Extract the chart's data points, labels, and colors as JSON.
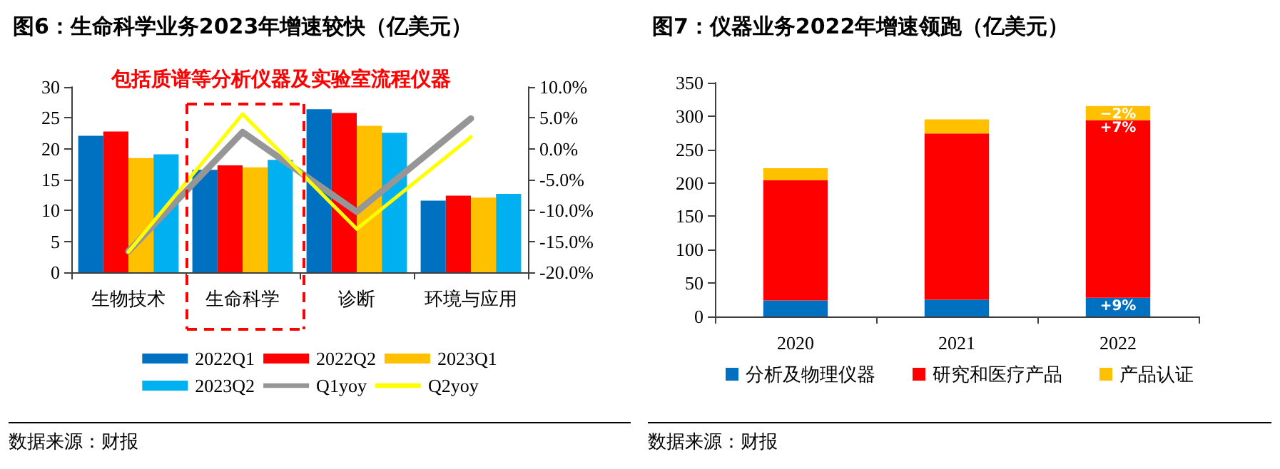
{
  "chart_data": [
    {
      "type": "bar",
      "title": "图6：生命科学业务2023年增速较快（亿美元）",
      "categories": [
        "生物技术",
        "生命科学",
        "诊断",
        "环境与应用"
      ],
      "series": [
        {
          "name": "2022Q1",
          "color": "#0070c0",
          "values": [
            22.1,
            16.6,
            26.4,
            11.6
          ]
        },
        {
          "name": "2022Q2",
          "color": "#ff0000",
          "values": [
            22.8,
            17.3,
            25.8,
            12.4
          ]
        },
        {
          "name": "2023Q1",
          "color": "#ffc000",
          "values": [
            18.5,
            17.0,
            23.7,
            12.1
          ]
        },
        {
          "name": "2023Q2",
          "color": "#00b0f0",
          "values": [
            19.1,
            18.2,
            22.6,
            12.7
          ]
        },
        {
          "name": "Q1yoy",
          "type": "line",
          "axis": "y2",
          "color": "#969696",
          "values": [
            -16.6,
            2.7,
            -10.2,
            4.9
          ]
        },
        {
          "name": "Q2yoy",
          "type": "line",
          "axis": "y2",
          "color": "#ffff00",
          "values": [
            -16.7,
            5.6,
            -13.0,
            1.9
          ]
        }
      ],
      "ylim": [
        0,
        30
      ],
      "yticks": [
        0,
        5,
        10,
        15,
        20,
        25,
        30
      ],
      "y2lim": [
        -20,
        10
      ],
      "y2ticks": [
        {
          "value": -20,
          "label": "-20.0%"
        },
        {
          "value": -15,
          "label": "-15.0%"
        },
        {
          "value": -10,
          "label": "-10.0%"
        },
        {
          "value": -5,
          "label": "-5.0%"
        },
        {
          "value": 0,
          "label": "0.0%"
        },
        {
          "value": 5,
          "label": "5.0%"
        },
        {
          "value": 10,
          "label": "10.0%"
        }
      ],
      "grid": false,
      "legend": "bottom",
      "marker": "none",
      "line_style": "solid",
      "annotations": [
        "包括质谱等分析仪器及实验室流程仪器",
        "数据来源：财报"
      ]
    },
    {
      "type": "bar",
      "title": "图7：仪器业务2022年增速领跑（亿美元）",
      "stacked": true,
      "categories": [
        "2020",
        "2021",
        "2022"
      ],
      "series": [
        {
          "name": "分析及物理仪器",
          "color": "#0070c0",
          "values": [
            24,
            25,
            28
          ]
        },
        {
          "name": "研究和医疗产品",
          "color": "#ff0000",
          "values": [
            180,
            249,
            266
          ]
        },
        {
          "name": "产品认证",
          "color": "#ffc000",
          "values": [
            18,
            21,
            21
          ]
        }
      ],
      "ylim": [
        0,
        350
      ],
      "yticks": [
        0,
        50,
        100,
        150,
        200,
        250,
        300,
        350
      ],
      "grid": false,
      "legend": "bottom",
      "annotations": [
        {
          "text": "+9%",
          "x": "2022",
          "y": 28
        },
        {
          "text": "+7%",
          "x": "2022",
          "y": 294
        },
        {
          "text": "−2%",
          "x": "2022",
          "y": 315
        },
        "数据来源：财报"
      ]
    }
  ]
}
